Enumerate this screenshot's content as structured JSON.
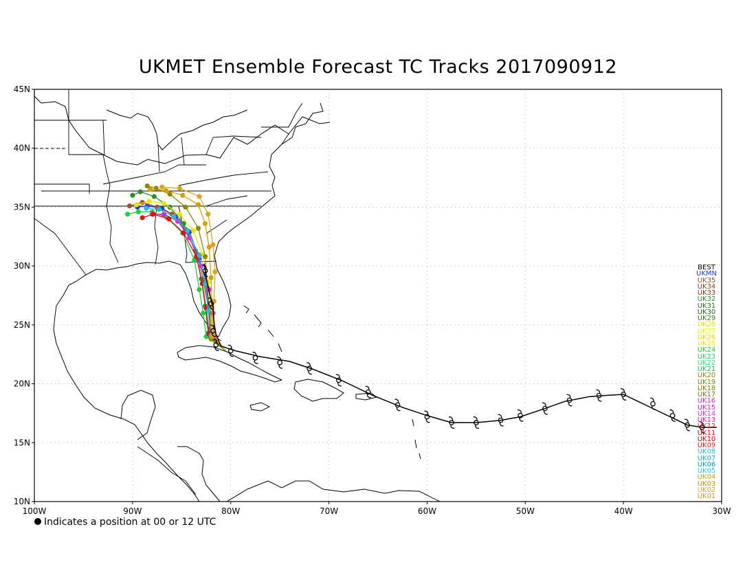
{
  "title": "UKMET Ensemble Forecast TC Tracks 2017090912",
  "footnote": "Indicates a position at 00 or 12 UTC",
  "axes": {
    "lon_ticks": [
      "100W",
      "90W",
      "80W",
      "70W",
      "60W",
      "50W",
      "40W",
      "30W"
    ],
    "lat_ticks": [
      "45N",
      "40N",
      "35N",
      "30N",
      "25N",
      "20N",
      "15N",
      "10N"
    ]
  },
  "legend": [
    {
      "label": "BEST",
      "color": "#000000"
    },
    {
      "label": "UKMN",
      "color": "#1f3fe0"
    },
    {
      "label": "UK35",
      "color": "#a0522d"
    },
    {
      "label": "UK34",
      "color": "#8b4513"
    },
    {
      "label": "UK33",
      "color": "#7a3b10"
    },
    {
      "label": "UK32",
      "color": "#2e8b2e"
    },
    {
      "label": "UK31",
      "color": "#1f6f1f"
    },
    {
      "label": "UK30",
      "color": "#186418"
    },
    {
      "label": "UK29",
      "color": "#3b7a0c"
    },
    {
      "label": "UK28",
      "color": "#e6e600"
    },
    {
      "label": "UK27",
      "color": "#f0f000"
    },
    {
      "label": "UK26",
      "color": "#e8d800"
    },
    {
      "label": "UK25",
      "color": "#f2e600"
    },
    {
      "label": "UK24",
      "color": "#22cc44"
    },
    {
      "label": "UK23",
      "color": "#1fd060"
    },
    {
      "label": "UK22",
      "color": "#33dd77"
    },
    {
      "label": "UK21",
      "color": "#27b85a"
    },
    {
      "label": "UK20",
      "color": "#8a8a00"
    },
    {
      "label": "UK19",
      "color": "#6b8e23"
    },
    {
      "label": "UK18",
      "color": "#808000"
    },
    {
      "label": "UK17",
      "color": "#707a10"
    },
    {
      "label": "UK16",
      "color": "#e020e0"
    },
    {
      "label": "UK15",
      "color": "#cc22cc"
    },
    {
      "label": "UK14",
      "color": "#d030d0"
    },
    {
      "label": "UK13",
      "color": "#e010b0"
    },
    {
      "label": "UK12",
      "color": "#dd1111"
    },
    {
      "label": "UK11",
      "color": "#ee0000"
    },
    {
      "label": "UK10",
      "color": "#cc0000"
    },
    {
      "label": "UK09",
      "color": "#d41a1a"
    },
    {
      "label": "UK08",
      "color": "#22bbdd"
    },
    {
      "label": "UK07",
      "color": "#11aacc"
    },
    {
      "label": "UK06",
      "color": "#1199bb"
    },
    {
      "label": "UK05",
      "color": "#22ccee"
    },
    {
      "label": "UK04",
      "color": "#d4a000"
    },
    {
      "label": "UK03",
      "color": "#c89000"
    },
    {
      "label": "UK02",
      "color": "#daa520"
    },
    {
      "label": "UK01",
      "color": "#cc9911"
    }
  ],
  "best_track": {
    "color": "#000000",
    "points": [
      [
        -30.5,
        16.3
      ],
      [
        -32,
        16.3
      ],
      [
        -33.5,
        16.5
      ],
      [
        -35,
        17.1
      ],
      [
        -36.5,
        17.7
      ],
      [
        -38.5,
        18.5
      ],
      [
        -40,
        19.1
      ],
      [
        -42,
        19.0
      ],
      [
        -43.5,
        18.9
      ],
      [
        -46,
        18.5
      ],
      [
        -48,
        17.9
      ],
      [
        -50.5,
        17.2
      ],
      [
        -52.5,
        16.9
      ],
      [
        -55,
        16.7
      ],
      [
        -57.5,
        16.7
      ],
      [
        -60,
        17.3
      ],
      [
        -62.5,
        18.0
      ],
      [
        -65.5,
        19.0
      ],
      [
        -68.5,
        20.2
      ],
      [
        -71.5,
        21.2
      ],
      [
        -74,
        21.9
      ],
      [
        -77,
        22.3
      ],
      [
        -79.5,
        22.8
      ],
      [
        -81,
        23.2
      ],
      [
        -81.5,
        24.2
      ],
      [
        -81.7,
        25.2
      ],
      [
        -81.8,
        26.5
      ],
      [
        -82.2,
        27.8
      ],
      [
        -82.5,
        29.0
      ],
      [
        -82.7,
        30.2
      ]
    ],
    "symbol_points": [
      [
        -32,
        16.3
      ],
      [
        -33.5,
        16.5
      ],
      [
        -35,
        17.3
      ],
      [
        -37,
        18.3
      ],
      [
        -40,
        19.1
      ],
      [
        -42.5,
        19.0
      ],
      [
        -45.5,
        18.6
      ],
      [
        -48,
        17.9
      ],
      [
        -50.5,
        17.3
      ],
      [
        -52.5,
        16.9
      ],
      [
        -55,
        16.7
      ],
      [
        -57.5,
        16.7
      ],
      [
        -60,
        17.2
      ],
      [
        -63,
        18.2
      ],
      [
        -66,
        19.3
      ],
      [
        -69,
        20.3
      ],
      [
        -72,
        21.3
      ],
      [
        -75,
        21.8
      ],
      [
        -77.5,
        22.2
      ],
      [
        -80,
        22.8
      ],
      [
        -81.5,
        23.3
      ],
      [
        -81.8,
        24.5
      ],
      [
        -82,
        26.8
      ],
      [
        -82.6,
        29.6
      ]
    ]
  },
  "ensemble_tracks": [
    {
      "id": "UKMN",
      "color": "#1f3fe0",
      "points": [
        [
          -80.5,
          22.8
        ],
        [
          -82,
          24.2
        ],
        [
          -82.2,
          26.2
        ],
        [
          -82.5,
          28.4
        ],
        [
          -83.2,
          30.6
        ],
        [
          -84.2,
          32.9
        ],
        [
          -85.6,
          34.2
        ],
        [
          -87,
          34.9
        ],
        [
          -88.5,
          35.1
        ],
        [
          -89.5,
          35.0
        ]
      ]
    },
    {
      "id": "UK35",
      "color": "#a0522d",
      "points": [
        [
          -80.5,
          22.8
        ],
        [
          -82.1,
          24.0
        ],
        [
          -82.3,
          26.5
        ],
        [
          -82.8,
          28.8
        ],
        [
          -83.4,
          31.0
        ],
        [
          -84.6,
          33.1
        ],
        [
          -86,
          34.4
        ],
        [
          -87.5,
          35.0
        ],
        [
          -89,
          35.4
        ],
        [
          -90.3,
          35.1
        ]
      ]
    },
    {
      "id": "UK32",
      "color": "#2e8b2e",
      "points": [
        [
          -80.5,
          22.8
        ],
        [
          -82.3,
          24.3
        ],
        [
          -82.6,
          26.6
        ],
        [
          -83,
          28.9
        ],
        [
          -83.6,
          31.3
        ],
        [
          -84.8,
          33.6
        ],
        [
          -86.2,
          35.0
        ],
        [
          -87.8,
          35.9
        ],
        [
          -89.2,
          36.3
        ],
        [
          -90,
          36.0
        ]
      ]
    },
    {
      "id": "UK28",
      "color": "#e6e600",
      "points": [
        [
          -80.5,
          22.8
        ],
        [
          -81.9,
          24.1
        ],
        [
          -82,
          26.3
        ],
        [
          -82.3,
          28.6
        ],
        [
          -82.9,
          31.0
        ],
        [
          -83.8,
          33.0
        ],
        [
          -85.2,
          34.4
        ],
        [
          -86.8,
          35.3
        ],
        [
          -88.3,
          35.5
        ],
        [
          -89.6,
          35.2
        ]
      ]
    },
    {
      "id": "UK24",
      "color": "#22cc44",
      "points": [
        [
          -80.5,
          22.8
        ],
        [
          -82.5,
          24.0
        ],
        [
          -82.8,
          26.0
        ],
        [
          -83.2,
          28.0
        ],
        [
          -83.7,
          30.5
        ],
        [
          -84.9,
          32.8
        ],
        [
          -86.5,
          34.1
        ],
        [
          -88,
          34.6
        ],
        [
          -89.4,
          34.6
        ],
        [
          -90.5,
          34.4
        ]
      ]
    },
    {
      "id": "UK20",
      "color": "#8a8a00",
      "points": [
        [
          -80.5,
          22.8
        ],
        [
          -82,
          23.8
        ],
        [
          -82.1,
          26.0
        ],
        [
          -82.4,
          28.2
        ],
        [
          -82.6,
          30.8
        ],
        [
          -83.3,
          33.2
        ],
        [
          -84.6,
          35.0
        ],
        [
          -86.2,
          36.1
        ],
        [
          -87.6,
          36.6
        ],
        [
          -88.5,
          36.8
        ]
      ]
    },
    {
      "id": "UK16",
      "color": "#e020e0",
      "points": [
        [
          -80.5,
          22.8
        ],
        [
          -81.7,
          24.0
        ],
        [
          -81.8,
          26.0
        ],
        [
          -82.2,
          28.0
        ],
        [
          -83,
          30.0
        ],
        [
          -84.2,
          32.4
        ],
        [
          -85.4,
          33.8
        ],
        [
          -86.8,
          34.4
        ],
        [
          -88,
          34.4
        ]
      ]
    },
    {
      "id": "UK12",
      "color": "#dd1111",
      "points": [
        [
          -80.5,
          22.8
        ],
        [
          -82.2,
          24.2
        ],
        [
          -82.5,
          26.4
        ],
        [
          -82.9,
          28.5
        ],
        [
          -83.5,
          30.8
        ],
        [
          -84.8,
          32.8
        ],
        [
          -86.3,
          34.0
        ],
        [
          -87.9,
          34.4
        ],
        [
          -89,
          34.1
        ]
      ]
    },
    {
      "id": "UK08",
      "color": "#22bbdd",
      "points": [
        [
          -80.5,
          22.8
        ],
        [
          -82,
          24.1
        ],
        [
          -82.3,
          26.2
        ],
        [
          -82.6,
          28.5
        ],
        [
          -83.2,
          30.9
        ],
        [
          -84.4,
          33.0
        ],
        [
          -85.8,
          34.2
        ],
        [
          -87.3,
          34.8
        ],
        [
          -88.6,
          34.9
        ]
      ]
    },
    {
      "id": "UK04",
      "color": "#d4a000",
      "points": [
        [
          -80.5,
          22.8
        ],
        [
          -81.9,
          24.0
        ],
        [
          -81.9,
          26.5
        ],
        [
          -82,
          29.0
        ],
        [
          -82.2,
          31.6
        ],
        [
          -82.6,
          33.6
        ],
        [
          -83.3,
          35.2
        ],
        [
          -84.9,
          36.0
        ],
        [
          -86.6,
          36.4
        ],
        [
          -88.2,
          36.5
        ]
      ]
    },
    {
      "id": "UK02",
      "color": "#daa520",
      "points": [
        [
          -80.5,
          22.8
        ],
        [
          -81.8,
          24.2
        ],
        [
          -81.7,
          27.0
        ],
        [
          -81.6,
          29.5
        ],
        [
          -81.8,
          31.8
        ],
        [
          -82.3,
          34.4
        ],
        [
          -83.2,
          35.9
        ],
        [
          -85.2,
          36.6
        ],
        [
          -87,
          36.7
        ]
      ]
    }
  ]
}
